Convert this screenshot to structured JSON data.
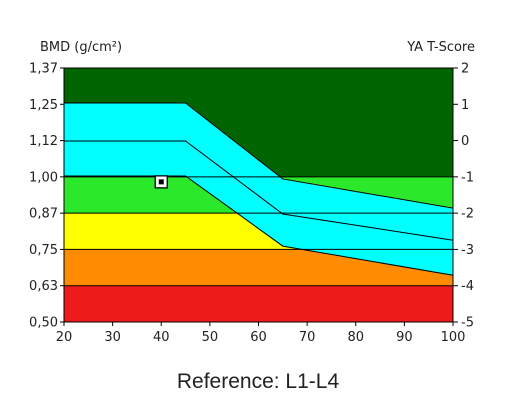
{
  "chart_data": {
    "type": "area",
    "ylabel_left": "BMD (g/cm²)",
    "ylabel_right": "YA T-Score",
    "caption": "Reference: L1-L4",
    "x_ticks": [
      "20",
      "30",
      "40",
      "50",
      "60",
      "70",
      "80",
      "90",
      "100"
    ],
    "y_left_ticks": [
      "1,37",
      "1,25",
      "1,12",
      "1,00",
      "0,87",
      "0,75",
      "0,63",
      "0,50"
    ],
    "y_right_ticks": [
      "2",
      "1",
      "0",
      "-1",
      "-2",
      "-3",
      "-4",
      "-5"
    ],
    "xlim": [
      20,
      100
    ],
    "ylim": [
      0.5,
      1.37
    ],
    "t_score_range": [
      -5,
      2
    ],
    "bands": [
      {
        "name": "red",
        "from_t": -5,
        "to_t": -4,
        "color": "#ee1b1b"
      },
      {
        "name": "orange",
        "from_t": -4,
        "to_t": -3,
        "color": "#ff8b00"
      },
      {
        "name": "yellow",
        "from_t": -3,
        "to_t": -2,
        "color": "#ffff00"
      },
      {
        "name": "light-green",
        "from_t": -2,
        "to_t": -1,
        "color": "#2be82b"
      },
      {
        "name": "dark-green",
        "from_t": -1,
        "to_t": 2,
        "color": "#006400"
      }
    ],
    "reference_band": {
      "color": "#00ffff",
      "x": [
        20,
        45,
        65,
        100
      ],
      "upper": [
        1.25,
        1.25,
        0.99,
        0.89
      ],
      "mean": [
        1.12,
        1.12,
        0.87,
        0.78
      ],
      "lower": [
        1.0,
        1.0,
        0.76,
        0.66
      ]
    },
    "patient_point": {
      "age": 40,
      "bmd": 0.98
    }
  }
}
